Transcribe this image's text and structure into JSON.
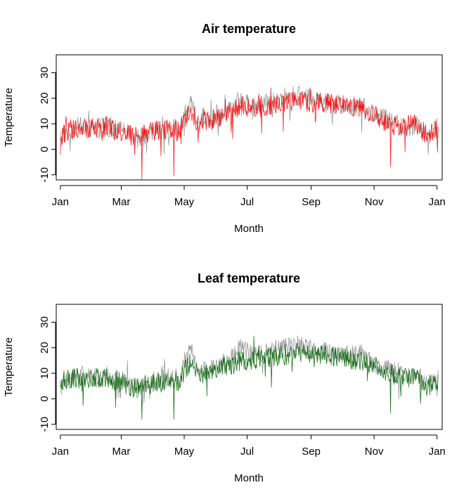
{
  "chart_data": [
    {
      "type": "line",
      "title": "Air temperature",
      "xlabel": "Month",
      "ylabel": "Temperature",
      "x_ticks": [
        "Jan",
        "Mar",
        "May",
        "Jul",
        "Sep",
        "Nov",
        "Jan"
      ],
      "y_ticks": [
        "-10",
        "0",
        "10",
        "20",
        "30"
      ],
      "ylim": [
        -12,
        37
      ],
      "xlim_days": [
        -4,
        370
      ],
      "grid": false,
      "legend": "none",
      "series": [
        {
          "color": "#999999",
          "anchors": [
            [
              0,
              5
            ],
            [
              10,
              8
            ],
            [
              20,
              9
            ],
            [
              30,
              8
            ],
            [
              45,
              9
            ],
            [
              60,
              7
            ],
            [
              75,
              4
            ],
            [
              90,
              7
            ],
            [
              105,
              8
            ],
            [
              115,
              8
            ],
            [
              121,
              15
            ],
            [
              126,
              19
            ],
            [
              135,
              10
            ],
            [
              150,
              12
            ],
            [
              165,
              15
            ],
            [
              175,
              20
            ],
            [
              185,
              17
            ],
            [
              200,
              18
            ],
            [
              215,
              20
            ],
            [
              230,
              21
            ],
            [
              245,
              19
            ],
            [
              260,
              18
            ],
            [
              275,
              17
            ],
            [
              290,
              17
            ],
            [
              305,
              14
            ],
            [
              315,
              12
            ],
            [
              325,
              10
            ],
            [
              335,
              8
            ],
            [
              345,
              10
            ],
            [
              355,
              5
            ],
            [
              365,
              8
            ]
          ],
          "noise": 5,
          "spikes": []
        },
        {
          "color": "#ff0000",
          "anchors": [
            [
              0,
              5
            ],
            [
              10,
              8
            ],
            [
              20,
              8
            ],
            [
              30,
              8
            ],
            [
              45,
              9
            ],
            [
              60,
              6
            ],
            [
              75,
              5
            ],
            [
              90,
              7
            ],
            [
              105,
              8
            ],
            [
              115,
              7
            ],
            [
              121,
              12
            ],
            [
              126,
              16
            ],
            [
              135,
              9
            ],
            [
              150,
              12
            ],
            [
              165,
              14
            ],
            [
              175,
              17
            ],
            [
              185,
              16
            ],
            [
              200,
              17
            ],
            [
              215,
              18
            ],
            [
              230,
              19
            ],
            [
              245,
              18
            ],
            [
              260,
              18
            ],
            [
              275,
              17
            ],
            [
              290,
              16
            ],
            [
              305,
              13
            ],
            [
              315,
              11
            ],
            [
              325,
              9
            ],
            [
              335,
              9
            ],
            [
              345,
              11
            ],
            [
              355,
              5
            ],
            [
              365,
              8
            ]
          ],
          "noise": 5,
          "spikes": [
            [
              79,
              -12
            ],
            [
              110,
              -10.5
            ],
            [
              320,
              -7
            ]
          ]
        }
      ]
    },
    {
      "type": "line",
      "title": "Leaf temperature",
      "xlabel": "Month",
      "ylabel": "Temperature",
      "x_ticks": [
        "Jan",
        "Mar",
        "May",
        "Jul",
        "Sep",
        "Nov",
        "Jan"
      ],
      "y_ticks": [
        "-10",
        "0",
        "10",
        "20",
        "30"
      ],
      "ylim": [
        -12,
        37
      ],
      "xlim_days": [
        -4,
        370
      ],
      "grid": false,
      "legend": "none",
      "series": [
        {
          "color": "#999999",
          "anchors": [
            [
              0,
              5
            ],
            [
              10,
              8
            ],
            [
              20,
              9
            ],
            [
              30,
              8
            ],
            [
              45,
              9
            ],
            [
              60,
              7
            ],
            [
              75,
              4
            ],
            [
              90,
              7
            ],
            [
              105,
              8
            ],
            [
              115,
              8
            ],
            [
              121,
              15
            ],
            [
              126,
              19
            ],
            [
              135,
              10
            ],
            [
              150,
              12
            ],
            [
              165,
              15
            ],
            [
              175,
              20
            ],
            [
              185,
              17
            ],
            [
              200,
              18
            ],
            [
              215,
              20
            ],
            [
              230,
              21
            ],
            [
              245,
              19
            ],
            [
              260,
              18
            ],
            [
              275,
              17
            ],
            [
              290,
              17
            ],
            [
              305,
              14
            ],
            [
              315,
              12
            ],
            [
              325,
              10
            ],
            [
              335,
              8
            ],
            [
              345,
              10
            ],
            [
              355,
              5
            ],
            [
              365,
              8
            ]
          ],
          "noise": 5,
          "spikes": []
        },
        {
          "color": "#006400",
          "anchors": [
            [
              0,
              5
            ],
            [
              10,
              8
            ],
            [
              20,
              8
            ],
            [
              30,
              8
            ],
            [
              45,
              8
            ],
            [
              60,
              6
            ],
            [
              75,
              4
            ],
            [
              90,
              6
            ],
            [
              105,
              7
            ],
            [
              115,
              7
            ],
            [
              121,
              12
            ],
            [
              126,
              14
            ],
            [
              135,
              9
            ],
            [
              150,
              12
            ],
            [
              165,
              13
            ],
            [
              175,
              15
            ],
            [
              185,
              15
            ],
            [
              200,
              16
            ],
            [
              215,
              17
            ],
            [
              230,
              18
            ],
            [
              245,
              17
            ],
            [
              260,
              17
            ],
            [
              275,
              16
            ],
            [
              290,
              15
            ],
            [
              305,
              13
            ],
            [
              315,
              11
            ],
            [
              325,
              9
            ],
            [
              335,
              8
            ],
            [
              345,
              9
            ],
            [
              355,
              4
            ],
            [
              365,
              7
            ]
          ],
          "noise": 5,
          "spikes": [
            [
              79,
              -8
            ],
            [
              110,
              -8
            ],
            [
              320,
              -5.5
            ]
          ]
        }
      ]
    }
  ]
}
